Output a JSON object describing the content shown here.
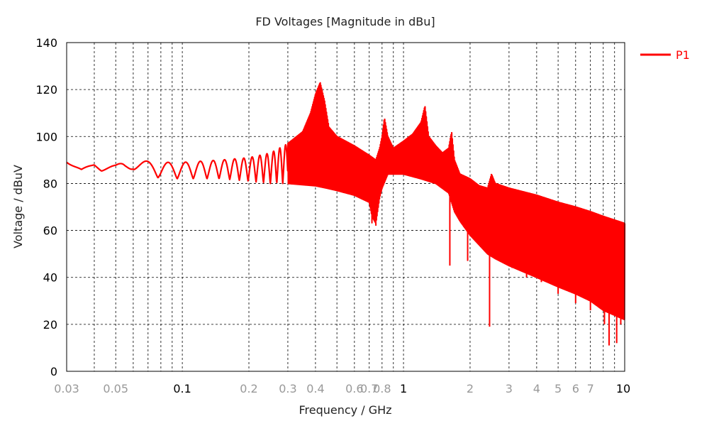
{
  "chart_data": {
    "type": "line",
    "title": "FD Voltages [Magnitude in dBu]",
    "xlabel": "Frequency / GHz",
    "ylabel": "Voltage / dBuV",
    "x_scale": "log",
    "xlim": [
      0.03,
      10
    ],
    "ylim": [
      0,
      140
    ],
    "grid": true,
    "legend_position": "top-right",
    "x_tick_labels": [
      {
        "value": 0.03,
        "label": "0.03",
        "color": "#999999"
      },
      {
        "value": 0.05,
        "label": "0.05",
        "color": "#999999"
      },
      {
        "value": 0.1,
        "label": "0.1",
        "color": "#000000"
      },
      {
        "value": 0.2,
        "label": "0.2",
        "color": "#999999"
      },
      {
        "value": 0.3,
        "label": "0.3",
        "color": "#999999"
      },
      {
        "value": 0.4,
        "label": "0.4",
        "color": "#999999"
      },
      {
        "value": 0.6,
        "label": "0.6",
        "color": "#999999"
      },
      {
        "value": 0.7,
        "label": "0.7",
        "color": "#999999"
      },
      {
        "value": 0.8,
        "label": "0.8",
        "color": "#999999"
      },
      {
        "value": 1,
        "label": "1",
        "color": "#000000"
      },
      {
        "value": 2,
        "label": "2",
        "color": "#999999"
      },
      {
        "value": 3,
        "label": "3",
        "color": "#999999"
      },
      {
        "value": 4,
        "label": "4",
        "color": "#999999"
      },
      {
        "value": 5,
        "label": "5",
        "color": "#999999"
      },
      {
        "value": 6,
        "label": "6",
        "color": "#999999"
      },
      {
        "value": 7,
        "label": "7",
        "color": "#999999"
      },
      {
        "value": 10,
        "label": "10",
        "color": "#000000"
      }
    ],
    "x_gridlines": [
      0.04,
      0.05,
      0.06,
      0.07,
      0.08,
      0.09,
      0.1,
      0.2,
      0.3,
      0.4,
      0.5,
      0.6,
      0.7,
      0.8,
      0.9,
      1,
      2,
      3,
      4,
      5,
      6,
      7,
      8,
      9
    ],
    "y_ticks": [
      0,
      20,
      40,
      60,
      80,
      100,
      120,
      140
    ],
    "series": [
      {
        "name": "P1",
        "color": "#ff0000",
        "upper_envelope": {
          "x": [
            0.03,
            0.035,
            0.04,
            0.05,
            0.06,
            0.08,
            0.1,
            0.15,
            0.2,
            0.25,
            0.3,
            0.35,
            0.38,
            0.4,
            0.42,
            0.44,
            0.46,
            0.5,
            0.6,
            0.7,
            0.75,
            0.78,
            0.8,
            0.82,
            0.85,
            0.9,
            1.0,
            1.1,
            1.2,
            1.25,
            1.3,
            1.4,
            1.5,
            1.6,
            1.65,
            1.7,
            1.8,
            2.0,
            2.2,
            2.4,
            2.5,
            2.6,
            3.0,
            4.0,
            5.0,
            6.0,
            7.0,
            8.0,
            10.0
          ],
          "y": [
            89,
            86,
            90,
            88,
            90,
            89,
            89,
            90,
            91,
            93,
            97,
            102,
            110,
            118,
            123,
            115,
            104,
            100,
            96,
            92,
            90,
            95,
            100,
            108,
            100,
            95,
            98,
            101,
            106,
            113,
            100,
            96,
            93,
            95,
            102,
            90,
            84,
            82,
            79,
            78,
            84,
            80,
            78,
            75,
            72,
            70,
            68,
            66,
            63
          ]
        },
        "lower_envelope": {
          "x": [
            0.03,
            0.035,
            0.04,
            0.05,
            0.055,
            0.06,
            0.08,
            0.1,
            0.15,
            0.2,
            0.25,
            0.3,
            0.4,
            0.45,
            0.5,
            0.6,
            0.7,
            0.72,
            0.75,
            0.78,
            0.8,
            0.85,
            0.9,
            1.0,
            1.2,
            1.4,
            1.6,
            1.7,
            1.8,
            2.0,
            2.4,
            2.6,
            3.0,
            4.0,
            5.0,
            6.0,
            7.0,
            8.0,
            10.0
          ],
          "y": [
            89,
            81,
            86,
            84,
            82,
            86,
            82,
            82,
            82,
            81,
            80,
            80,
            79,
            78,
            77,
            75,
            72,
            66,
            63,
            74,
            78,
            84,
            84,
            84,
            82,
            80,
            76,
            68,
            64,
            58,
            50,
            48,
            45,
            40,
            36,
            33,
            30,
            26,
            22
          ]
        },
        "notches": [
          {
            "x": 0.72,
            "y": 63
          },
          {
            "x": 0.75,
            "y": 62
          },
          {
            "x": 1.62,
            "y": 45
          },
          {
            "x": 1.95,
            "y": 47
          },
          {
            "x": 2.45,
            "y": 19
          },
          {
            "x": 3.1,
            "y": 44
          },
          {
            "x": 3.6,
            "y": 40
          },
          {
            "x": 4.2,
            "y": 38
          },
          {
            "x": 5.0,
            "y": 33
          },
          {
            "x": 6.0,
            "y": 29
          },
          {
            "x": 7.0,
            "y": 26
          },
          {
            "x": 8.1,
            "y": 20
          },
          {
            "x": 8.5,
            "y": 11
          },
          {
            "x": 9.2,
            "y": 12
          },
          {
            "x": 9.6,
            "y": 20
          }
        ]
      }
    ]
  }
}
